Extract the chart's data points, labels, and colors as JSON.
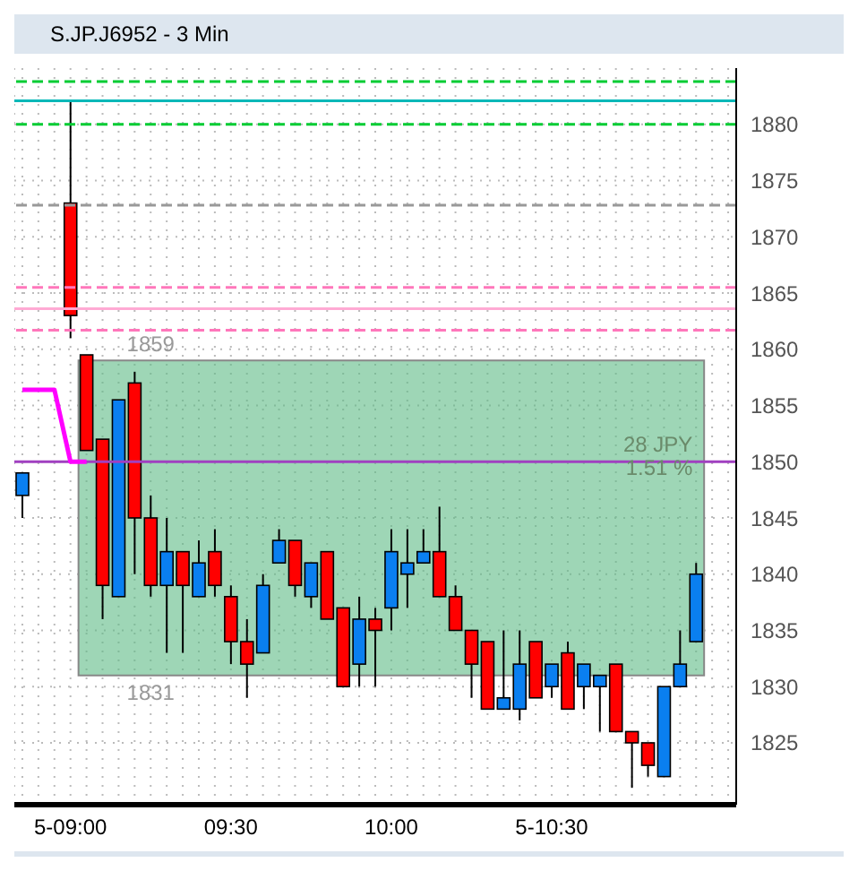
{
  "chart_data": {
    "type": "candlestick",
    "title": "S.JP.J6952 - 3 Min",
    "categories": [
      null,
      null,
      null,
      "5-09:00",
      null,
      null,
      null,
      null,
      null,
      null,
      null,
      null,
      null,
      "09:30",
      null,
      null,
      null,
      null,
      null,
      null,
      null,
      null,
      null,
      "10:00",
      null,
      null,
      null,
      null,
      null,
      null,
      null,
      null,
      null,
      "5-10:30",
      null,
      null,
      null,
      null,
      null,
      null,
      null,
      null,
      null,
      null,
      null
    ],
    "ohlc": [
      [
        1847,
        1849,
        1845,
        1849
      ],
      null,
      null,
      [
        1873,
        1882,
        1861,
        1863
      ],
      [
        1859.5,
        1859.5,
        1851,
        1851
      ],
      [
        1852,
        1852,
        1836,
        1839
      ],
      [
        1838,
        1855.5,
        1838,
        1855.5
      ],
      [
        1857,
        1858,
        1840,
        1845
      ],
      [
        1845,
        1847,
        1838,
        1839
      ],
      [
        1839,
        1845,
        1833,
        1842
      ],
      [
        1842,
        1842,
        1833,
        1839
      ],
      [
        1838,
        1843,
        1838,
        1841
      ],
      [
        1842,
        1844,
        1838,
        1839
      ],
      [
        1838,
        1839,
        1832,
        1834
      ],
      [
        1834,
        1836,
        1829,
        1832
      ],
      [
        1833,
        1840,
        1833,
        1839
      ],
      [
        1841,
        1844,
        1841,
        1843
      ],
      [
        1843,
        1843,
        1838,
        1839
      ],
      [
        1838,
        1841,
        1837,
        1841
      ],
      [
        1842,
        1842,
        1836,
        1836
      ],
      [
        1837,
        1837,
        1830,
        1830
      ],
      [
        1832,
        1838,
        1830,
        1836
      ],
      [
        1836,
        1837,
        1830,
        1835
      ],
      [
        1837,
        1844,
        1835,
        1842
      ],
      [
        1840,
        1844,
        1837,
        1841
      ],
      [
        1841,
        1844,
        1841,
        1842
      ],
      [
        1842,
        1846,
        1838,
        1838
      ],
      [
        1838,
        1839,
        1835,
        1835
      ],
      [
        1835,
        1835,
        1829,
        1832
      ],
      [
        1834,
        1834,
        1828,
        1828
      ],
      [
        1828,
        1835,
        1828,
        1829
      ],
      [
        1828,
        1835,
        1827,
        1832
      ],
      [
        1834,
        1834,
        1829,
        1829
      ],
      [
        1830,
        1832,
        1829,
        1832
      ],
      [
        1833,
        1834,
        1828,
        1828
      ],
      [
        1830,
        1832,
        1828,
        1832
      ],
      [
        1830,
        1831,
        1826,
        1831
      ],
      [
        1832,
        1832,
        1826,
        1826
      ],
      [
        1826,
        1826,
        1821,
        1825
      ],
      [
        1825,
        1825,
        1822,
        1823
      ],
      [
        1822,
        1830,
        1822,
        1830
      ],
      [
        1830,
        1835,
        1830,
        1832
      ],
      [
        1834,
        1841,
        1834,
        1840
      ],
      null,
      null
    ],
    "colors": [
      "#0a7ff0",
      null,
      null,
      "#ff0000",
      "#ff0000",
      "#ff0000",
      "#0a7ff0",
      "#ff0000",
      "#ff0000",
      "#0a7ff0",
      "#ff0000",
      "#0a7ff0",
      "#ff0000",
      "#ff0000",
      "#ff0000",
      "#0a7ff0",
      "#0a7ff0",
      "#ff0000",
      "#0a7ff0",
      "#ff0000",
      "#ff0000",
      "#0a7ff0",
      "#ff0000",
      "#0a7ff0",
      "#0a7ff0",
      "#0a7ff0",
      "#ff0000",
      "#ff0000",
      "#ff0000",
      "#ff0000",
      "#0a7ff0",
      "#0a7ff0",
      "#ff0000",
      "#0a7ff0",
      "#ff0000",
      "#0a7ff0",
      "#0a7ff0",
      "#ff0000",
      "#ff0000",
      "#ff0000",
      "#0a7ff0",
      "#0a7ff0",
      "#0a7ff0",
      null,
      null
    ],
    "series": [
      {
        "type": "line",
        "color": "#ff00ff",
        "values": [
          1856.4,
          1856.4,
          1856.4,
          1850,
          1850,
          null,
          null,
          null,
          null,
          null,
          null,
          null,
          null,
          null,
          null,
          null,
          null,
          null,
          null,
          null,
          null,
          null,
          null,
          null,
          null,
          null,
          null,
          null,
          null,
          null,
          null,
          null,
          null,
          null,
          null,
          null,
          null,
          null,
          null,
          null,
          null,
          null,
          null,
          null,
          null
        ]
      }
    ],
    "ylim": [
      1819.5,
      1885
    ],
    "yticks": [
      1825,
      1830,
      1835,
      1840,
      1845,
      1850,
      1855,
      1860,
      1865,
      1870,
      1875,
      1880
    ],
    "ref_lines": [
      {
        "axis": "y",
        "value": 1883.8,
        "color": "#00cc33",
        "line_style": "dashed"
      },
      {
        "axis": "y",
        "value": 1882.1,
        "color": "#00b8b8",
        "line_style": "solid"
      },
      {
        "axis": "y",
        "value": 1880,
        "color": "#00cc33",
        "line_style": "dashed"
      },
      {
        "axis": "y",
        "value": 1872.8,
        "color": "#999999",
        "line_style": "dashed"
      },
      {
        "axis": "y",
        "value": 1865.5,
        "color": "#ff77bb",
        "line_style": "dashed"
      },
      {
        "axis": "y",
        "value": 1863.6,
        "color": "#ffaad4",
        "line_style": "solid"
      },
      {
        "axis": "y",
        "value": 1861.7,
        "color": "#ff77bb",
        "line_style": "dashed"
      },
      {
        "axis": "y",
        "value": 1850,
        "color": "#a040c0",
        "line_style": "solid"
      }
    ],
    "bands": [
      {
        "axis": "y",
        "from": 1831,
        "to": 1859,
        "color": "#5dbb85"
      }
    ],
    "annotations": [
      {
        "text": "1859",
        "y": 1859
      },
      {
        "text": "1831",
        "y": 1831
      },
      "28 JPY",
      "1.51 %"
    ],
    "grid": true
  }
}
